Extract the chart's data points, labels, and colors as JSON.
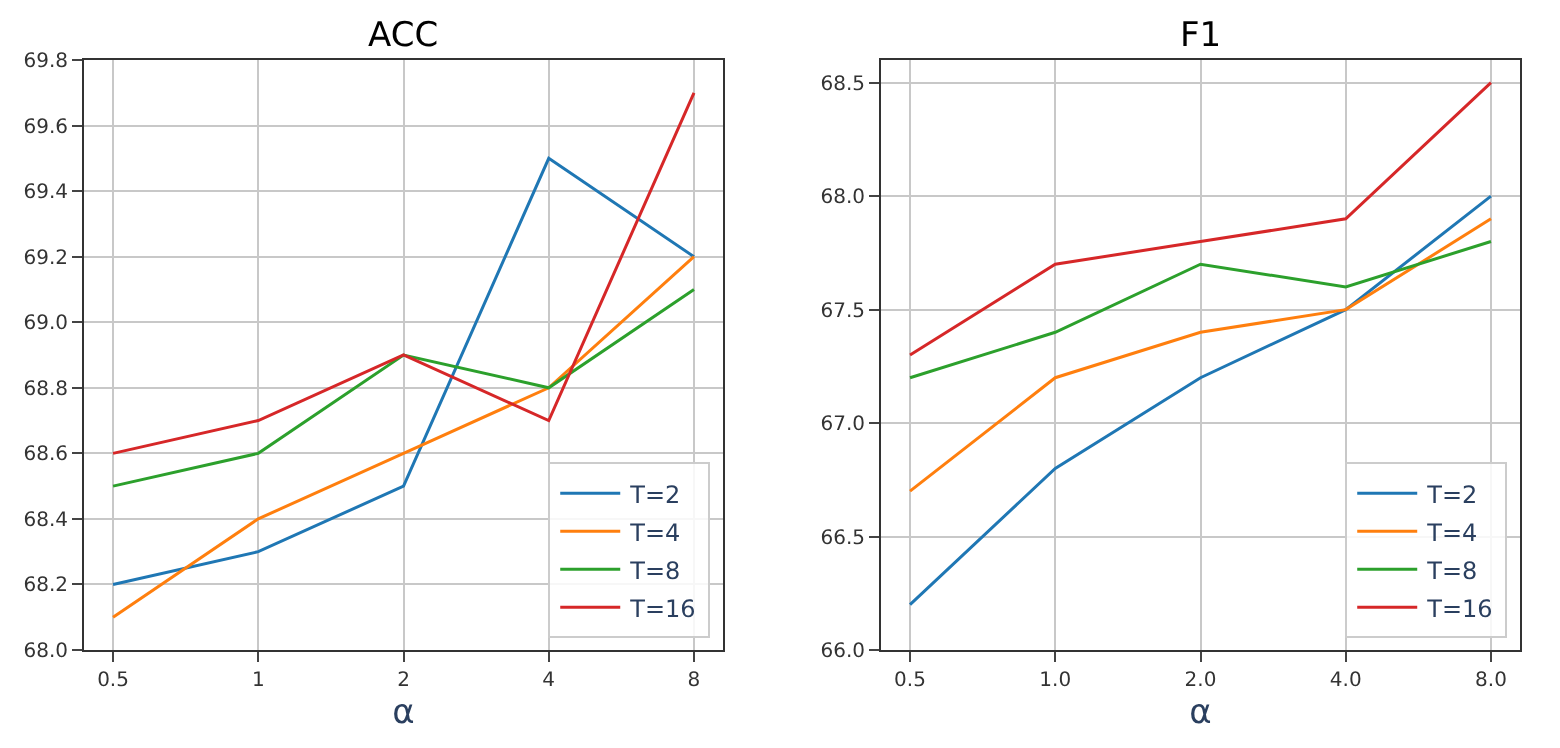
{
  "chart_data": [
    {
      "type": "line",
      "title": "ACC",
      "xlabel": "α",
      "categories": [
        "0.5",
        "1",
        "2",
        "4",
        "8"
      ],
      "ylim": [
        68.0,
        69.8
      ],
      "yticks": [
        {
          "value": 68,
          "label": "68.0"
        },
        68.2,
        68.4,
        68.6,
        68.8,
        {
          "value": 69,
          "label": "69.0"
        },
        69.2,
        69.4,
        69.6,
        69.8
      ],
      "grid": true,
      "legend": "bottom right",
      "series": [
        {
          "name": "T=2",
          "color": "#1f77b4",
          "values": [
            68.2,
            68.3,
            68.5,
            69.5,
            69.2
          ]
        },
        {
          "name": "T=4",
          "color": "#ff7f0e",
          "values": [
            68.1,
            68.4,
            68.6,
            68.8,
            69.2
          ]
        },
        {
          "name": "T=8",
          "color": "#2ca02c",
          "values": [
            68.5,
            68.6,
            68.9,
            68.8,
            69.1
          ]
        },
        {
          "name": "T=16",
          "color": "#d62728",
          "values": [
            68.6,
            68.7,
            68.9,
            68.7,
            69.7
          ]
        }
      ]
    },
    {
      "type": "line",
      "title": "F1",
      "xlabel": "α",
      "categories": [
        "0.5",
        "1.0",
        "2.0",
        "4.0",
        "8.0"
      ],
      "ylim": [
        66.0,
        68.6
      ],
      "yticks": [
        {
          "value": 66,
          "label": "66.0"
        },
        66.5,
        {
          "value": 67,
          "label": "67.0"
        },
        67.5,
        {
          "value": 68,
          "label": "68.0"
        },
        68.5
      ],
      "grid": true,
      "legend": "bottom right",
      "series": [
        {
          "name": "T=2",
          "color": "#1f77b4",
          "values": [
            66.2,
            66.8,
            67.2,
            67.5,
            68.0
          ]
        },
        {
          "name": "T=4",
          "color": "#ff7f0e",
          "values": [
            66.7,
            67.2,
            67.4,
            67.5,
            67.9
          ]
        },
        {
          "name": "T=8",
          "color": "#2ca02c",
          "values": [
            67.2,
            67.4,
            67.7,
            67.6,
            67.8
          ]
        },
        {
          "name": "T=16",
          "color": "#d62728",
          "values": [
            67.3,
            67.7,
            67.8,
            67.9,
            68.5
          ]
        }
      ]
    }
  ]
}
